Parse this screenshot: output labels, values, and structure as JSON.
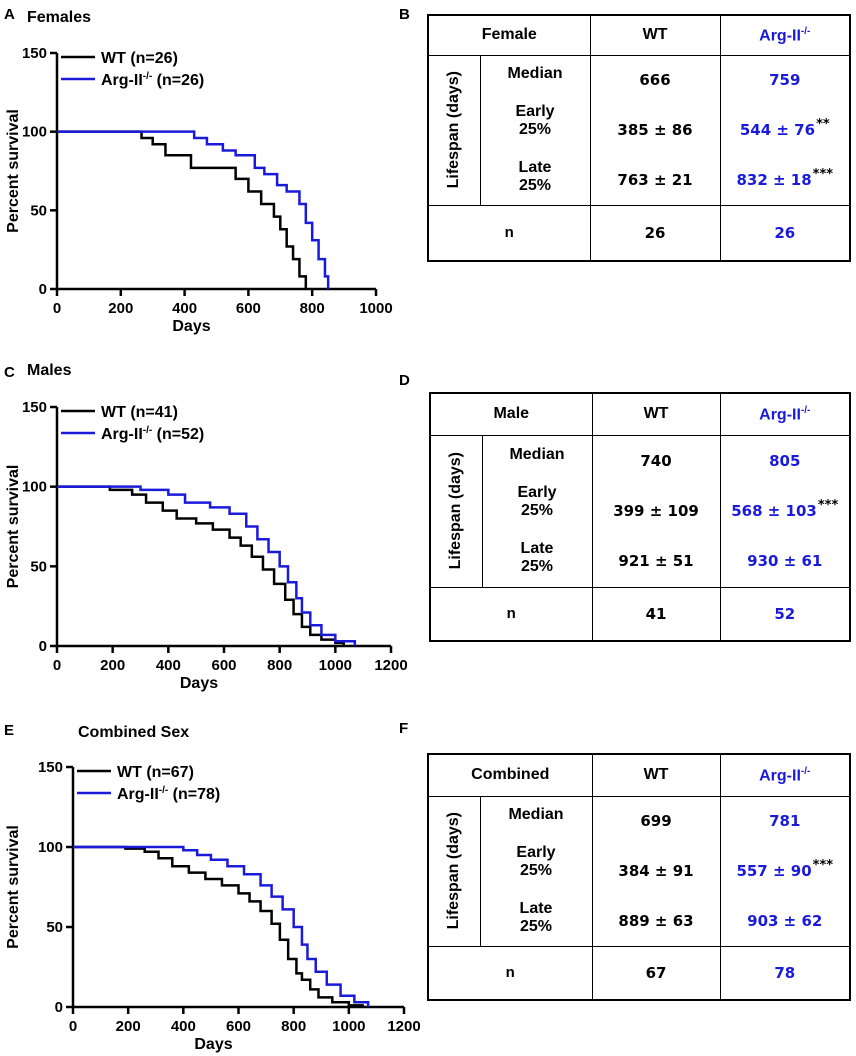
{
  "panels": [
    {
      "chart_letter": "A",
      "table_letter": "B",
      "chart_data": {
        "type": "line",
        "title": "Females",
        "xlabel": "Days",
        "ylabel": "Percent survival",
        "xlim": [
          0,
          1000
        ],
        "ylim": [
          0,
          150
        ],
        "xticks": [
          0,
          200,
          400,
          600,
          800,
          1000
        ],
        "yticks": [
          0,
          50,
          100,
          150
        ],
        "series": [
          {
            "name": "WT",
            "legend_n": "(n=26)",
            "color": "#000000",
            "x": [
              0,
              265,
              300,
              340,
              420,
              560,
              600,
              640,
              680,
              700,
              720,
              740,
              760,
              780
            ],
            "y": [
              100,
              96,
              92,
              85,
              77,
              70,
              62,
              54,
              46,
              38,
              27,
              19,
              8,
              0
            ]
          },
          {
            "name": "Arg-II",
            "legend_n": "(n=26)",
            "color": "#1a1adb",
            "x": [
              0,
              430,
              470,
              520,
              560,
              620,
              650,
              690,
              720,
              760,
              780,
              800,
              820,
              840,
              850
            ],
            "y": [
              100,
              96,
              92,
              88,
              85,
              77,
              73,
              66,
              62,
              54,
              42,
              31,
              19,
              8,
              0
            ]
          }
        ]
      },
      "table": {
        "group": "Female",
        "col_wt": "WT",
        "col_ko": "Arg-II",
        "side_label": "Lifespan (days)",
        "row_labels": [
          "Median",
          "Early\n25%",
          "Late\n25%"
        ],
        "wt": [
          "666",
          "385 ± 86",
          "763 ± 21"
        ],
        "ko": [
          "759",
          "544  ± 76",
          "832  ± 18"
        ],
        "ko_stars": [
          "",
          "**",
          "***"
        ],
        "n_label": "n",
        "n_wt": "26",
        "n_ko": "26"
      }
    },
    {
      "chart_letter": "C",
      "table_letter": "D",
      "chart_data": {
        "type": "line",
        "title": "Males",
        "xlabel": "Days",
        "ylabel": "Percent survival",
        "xlim": [
          0,
          1200
        ],
        "ylim": [
          0,
          150
        ],
        "xticks": [
          0,
          200,
          400,
          600,
          800,
          1000,
          1200
        ],
        "yticks": [
          0,
          50,
          100,
          150
        ],
        "series": [
          {
            "name": "WT",
            "legend_n": "(n=41)",
            "color": "#000000",
            "x": [
              0,
              190,
              270,
              320,
              380,
              430,
              500,
              560,
              620,
              660,
              700,
              740,
              780,
              820,
              850,
              880,
              910,
              950,
              1000,
              1030
            ],
            "y": [
              100,
              98,
              95,
              90,
              85,
              80,
              77,
              73,
              68,
              63,
              56,
              48,
              39,
              29,
              20,
              12,
              7,
              4,
              2,
              0
            ]
          },
          {
            "name": "Arg-II",
            "legend_n": "(n=52)",
            "color": "#1a1adb",
            "x": [
              0,
              300,
              400,
              460,
              550,
              620,
              680,
              720,
              760,
              800,
              830,
              860,
              880,
              910,
              950,
              1000,
              1070
            ],
            "y": [
              100,
              98,
              95,
              90,
              87,
              83,
              75,
              67,
              59,
              50,
              40,
              30,
              21,
              13,
              7,
              3,
              0
            ]
          }
        ]
      },
      "table": {
        "group": "Male",
        "col_wt": "WT",
        "col_ko": "Arg-II",
        "side_label": "Lifespan (days)",
        "row_labels": [
          "Median",
          "Early\n25%",
          "Late\n25%"
        ],
        "wt": [
          "740",
          "399 ± 109",
          "921 ± 51"
        ],
        "ko": [
          "805",
          "568  ± 103",
          "930  ± 61"
        ],
        "ko_stars": [
          "",
          "***",
          ""
        ],
        "n_label": "n",
        "n_wt": "41",
        "n_ko": "52"
      }
    },
    {
      "chart_letter": "E",
      "table_letter": "F",
      "chart_data": {
        "type": "line",
        "title": "Combined Sex",
        "xlabel": "Days",
        "ylabel": "Percent survival",
        "xlim": [
          0,
          1200
        ],
        "ylim": [
          0,
          150
        ],
        "xticks": [
          0,
          200,
          400,
          600,
          800,
          1000,
          1200
        ],
        "yticks": [
          0,
          50,
          100,
          150
        ],
        "series": [
          {
            "name": "WT",
            "legend_n": "(n=67)",
            "color": "#000000",
            "x": [
              0,
              190,
              260,
              310,
              360,
              420,
              480,
              540,
              600,
              640,
              680,
              720,
              750,
              780,
              810,
              830,
              860,
              890,
              940,
              1000,
              1050
            ],
            "y": [
              100,
              99,
              97,
              93,
              88,
              84,
              80,
              76,
              71,
              66,
              60,
              52,
              42,
              30,
              21,
              17,
              11,
              6,
              3,
              1,
              0
            ]
          },
          {
            "name": "Arg-II",
            "legend_n": "(n=78)",
            "color": "#1a1adb",
            "x": [
              0,
              400,
              450,
              500,
              560,
              620,
              680,
              720,
              760,
              800,
              830,
              850,
              880,
              920,
              970,
              1020,
              1070
            ],
            "y": [
              100,
              98,
              95,
              92,
              88,
              83,
              76,
              69,
              61,
              50,
              39,
              30,
              22,
              14,
              7,
              3,
              0
            ]
          }
        ]
      },
      "table": {
        "group": "Combined",
        "col_wt": "WT",
        "col_ko": "Arg-II",
        "side_label": "Lifespan (days)",
        "row_labels": [
          "Median",
          "Early\n25%",
          "Late\n25%"
        ],
        "wt": [
          "699",
          "384 ± 91",
          "889 ± 63"
        ],
        "ko": [
          "781",
          "557  ± 90",
          "903  ± 62"
        ],
        "ko_stars": [
          "",
          "***",
          ""
        ],
        "n_label": "n",
        "n_wt": "67",
        "n_ko": "78"
      }
    }
  ],
  "superscript": "-/-",
  "colors": {
    "wt": "#000000",
    "ko": "#1a1adb"
  }
}
